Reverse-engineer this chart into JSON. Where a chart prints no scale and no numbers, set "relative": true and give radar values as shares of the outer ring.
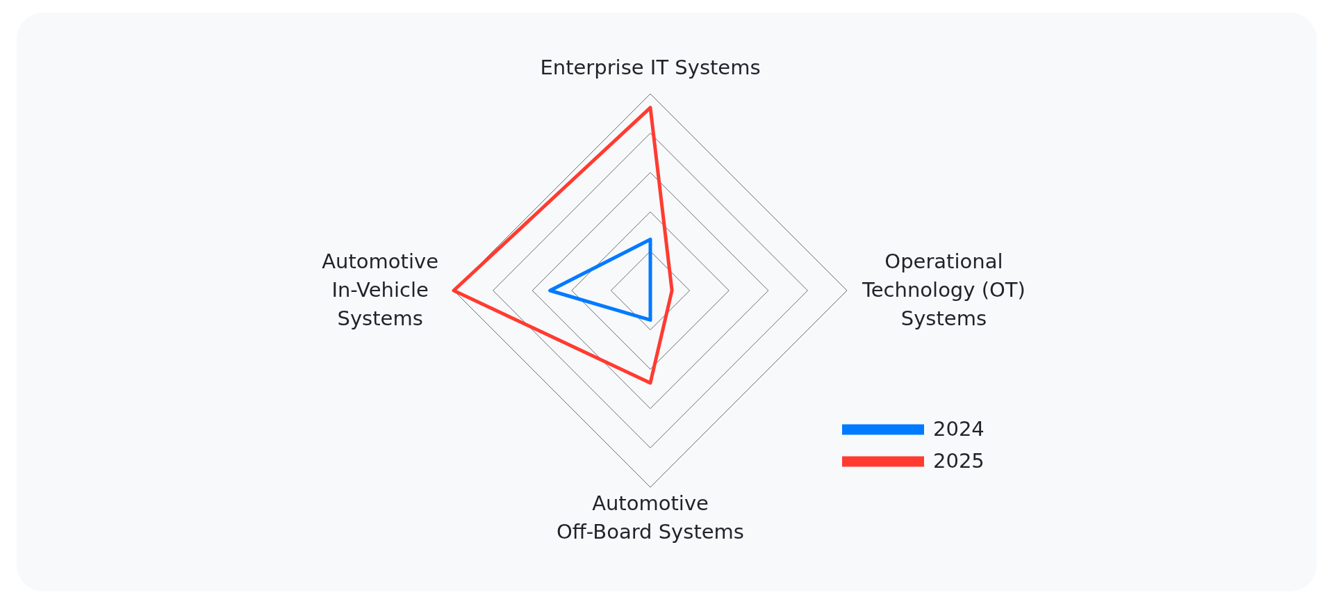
{
  "chart_data": {
    "type": "radar",
    "relative": true,
    "grid": true,
    "legend": "bottom right",
    "categories": [
      "Enterprise IT Systems",
      "Operational\nTechnology (OT)\nSystems",
      "Automotive\nOff-Board Systems",
      "Automotive\nIn-Vehicle\nSystems"
    ],
    "series": [
      {
        "name": "2024",
        "color": "#007aff",
        "values": [
          0.26,
          0,
          0.15,
          0.51
        ]
      },
      {
        "name": "2025",
        "color": "#ff3b30",
        "values": [
          0.93,
          0.11,
          0.47,
          1
        ]
      }
    ]
  }
}
